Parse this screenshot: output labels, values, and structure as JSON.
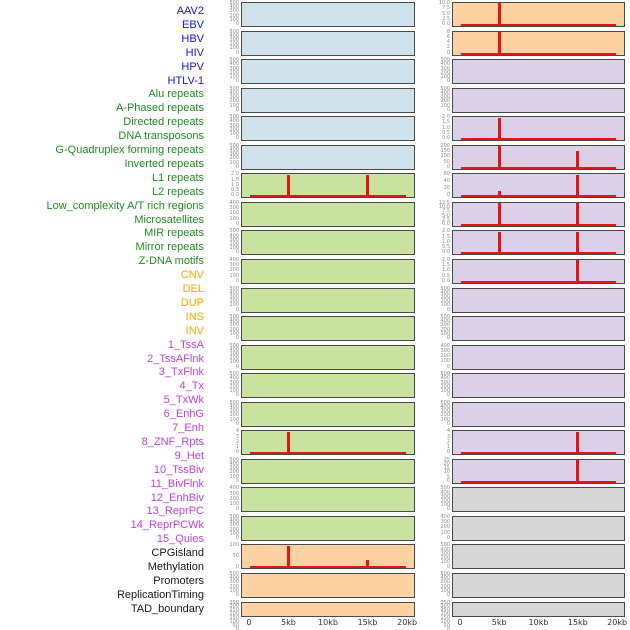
{
  "figure": {
    "x_axis_ticks": [
      "0",
      "5kb",
      "10kb",
      "15kb",
      "20kb"
    ],
    "x_axis_tick_positions_kb": [
      0,
      5,
      10,
      15,
      20
    ],
    "x_domain_kb": [
      0,
      20
    ],
    "x_pad_kb": 1
  },
  "colors": {
    "background": "#ffffff",
    "panel_border": "#4a4a4a",
    "signal_red": "#e81414",
    "ytick_text": "#8c8c8c",
    "xtick_text": "#333333"
  },
  "groups": {
    "virus": {
      "label_color": "#1414e6",
      "bg": "#cfe2ec"
    },
    "repeat": {
      "label_color": "#218a21",
      "bg": "#c9e2a0"
    },
    "sv": {
      "label_color": "#ffa500",
      "bg": "#fcd2a2"
    },
    "chromatin_state": {
      "label_color": "#bf40db",
      "bg": "#dad1e8"
    },
    "other": {
      "label_color": "#1a1a1a",
      "bg": "#d7d7d7"
    }
  },
  "chart_data": {
    "type": "bar",
    "x_unit": "kb",
    "x_ticks": [
      "0",
      "5kb",
      "10kb",
      "15kb",
      "20kb"
    ],
    "peak_positions_kb": [
      5,
      15
    ],
    "columns": [
      {
        "side": "left",
        "tracks": [
          {
            "name": "AAV2",
            "group": "virus",
            "yticks": [
              "500",
              "400",
              "300",
              "200",
              "100",
              "0"
            ],
            "ymax": 525,
            "peaks": [],
            "baseline": false
          },
          {
            "name": "EBV",
            "group": "virus",
            "yticks": [
              "500",
              "400",
              "300",
              "200",
              "100",
              "0"
            ],
            "ymax": 525,
            "peaks": [],
            "baseline": false
          },
          {
            "name": "HBV",
            "group": "virus",
            "yticks": [
              "500",
              "400",
              "300",
              "200",
              "100",
              "0"
            ],
            "ymax": 525,
            "peaks": [],
            "baseline": false
          },
          {
            "name": "HIV",
            "group": "virus",
            "yticks": [
              "500",
              "400",
              "300",
              "200",
              "100",
              "0"
            ],
            "ymax": 525,
            "peaks": [],
            "baseline": false
          },
          {
            "name": "HPV",
            "group": "virus",
            "yticks": [
              "500",
              "400",
              "300",
              "200",
              "100",
              "0"
            ],
            "ymax": 525,
            "peaks": [],
            "baseline": false
          },
          {
            "name": "HTLV-1",
            "group": "virus",
            "yticks": [
              "500",
              "400",
              "300",
              "200",
              "100",
              "0"
            ],
            "ymax": 525,
            "peaks": [],
            "baseline": false
          },
          {
            "name": "Alu repeats",
            "group": "repeat",
            "yticks": [
              "2.0",
              "1.5",
              "1.0",
              "0.5",
              "0.0"
            ],
            "ymax": 2.1,
            "peaks": [
              {
                "x_kb": 5,
                "value": 2.08
              },
              {
                "x_kb": 15,
                "value": 2.08
              }
            ],
            "baseline": true
          },
          {
            "name": "A-Phased repeats",
            "group": "repeat",
            "yticks": [
              "400",
              "300",
              "200",
              "100",
              "0"
            ],
            "ymax": 420,
            "peaks": [],
            "baseline": false
          },
          {
            "name": "Directed repeats",
            "group": "repeat",
            "yticks": [
              "500",
              "400",
              "300",
              "200",
              "100",
              "0"
            ],
            "ymax": 525,
            "peaks": [],
            "baseline": false
          },
          {
            "name": "DNA transposons",
            "group": "repeat",
            "yticks": [
              "400",
              "300",
              "200",
              "100",
              "0"
            ],
            "ymax": 420,
            "peaks": [],
            "baseline": false
          },
          {
            "name": "G-Quadruplex forming repeats",
            "group": "repeat",
            "yticks": [
              "500",
              "400",
              "300",
              "200",
              "100",
              "0"
            ],
            "ymax": 525,
            "peaks": [],
            "baseline": false
          },
          {
            "name": "Inverted repeats",
            "group": "repeat",
            "yticks": [
              "500",
              "400",
              "300",
              "200",
              "100",
              "0"
            ],
            "ymax": 525,
            "peaks": [],
            "baseline": false
          },
          {
            "name": "L1 repeats",
            "group": "repeat",
            "yticks": [
              "500",
              "400",
              "300",
              "200",
              "100",
              "0"
            ],
            "ymax": 525,
            "peaks": [],
            "baseline": false
          },
          {
            "name": "L2 repeats",
            "group": "repeat",
            "yticks": [
              "500",
              "400",
              "300",
              "200",
              "100",
              "0"
            ],
            "ymax": 525,
            "peaks": [],
            "baseline": false
          },
          {
            "name": "Low_complexity A/T rich regions",
            "group": "repeat",
            "yticks": [
              "500",
              "400",
              "300",
              "200",
              "100",
              "0"
            ],
            "ymax": 525,
            "peaks": [],
            "baseline": false
          },
          {
            "name": "Microsatellites",
            "group": "repeat",
            "yticks": [
              "4",
              "3",
              "2",
              "1",
              "0"
            ],
            "ymax": 4.2,
            "peaks": [
              {
                "x_kb": 5,
                "value": 4.1
              }
            ],
            "baseline": true
          },
          {
            "name": "MIR repeats",
            "group": "repeat",
            "yticks": [
              "500",
              "400",
              "300",
              "200",
              "100",
              "0"
            ],
            "ymax": 525,
            "peaks": [],
            "baseline": false
          },
          {
            "name": "Mirror repeats",
            "group": "repeat",
            "yticks": [
              "400",
              "300",
              "200",
              "100",
              "0"
            ],
            "ymax": 420,
            "peaks": [],
            "baseline": false
          },
          {
            "name": "Z-DNA motifs",
            "group": "repeat",
            "yticks": [
              "500",
              "400",
              "300",
              "200",
              "100",
              "0"
            ],
            "ymax": 525,
            "peaks": [],
            "baseline": false
          },
          {
            "name": "CNV",
            "group": "sv",
            "yticks": [
              "100",
              "50",
              "0"
            ],
            "ymax": 150,
            "peaks": [
              {
                "x_kb": 5,
                "value": 148
              },
              {
                "x_kb": 15,
                "value": 55
              }
            ],
            "baseline": true
          },
          {
            "name": "DEL",
            "group": "sv",
            "yticks": [
              "500",
              "400",
              "300",
              "200",
              "100",
              "0"
            ],
            "ymax": 525,
            "peaks": [],
            "baseline": false
          },
          {
            "name": "DUP",
            "group": "sv",
            "yticks": [
              "350",
              "300",
              "250",
              "200",
              "150",
              "100",
              "50",
              "0"
            ],
            "ymax": 368,
            "peaks": [],
            "baseline": false
          }
        ]
      },
      {
        "side": "right",
        "tracks": [
          {
            "name": "INS",
            "group": "sv",
            "yticks": [
              "10.0",
              "7.5",
              "5.0",
              "2.5",
              "0.0"
            ],
            "ymax": 10.5,
            "peaks": [
              {
                "x_kb": 5,
                "value": 10.4
              }
            ],
            "baseline": true
          },
          {
            "name": "INV",
            "group": "sv",
            "yticks": [
              "8",
              "6",
              "4",
              "2",
              "0"
            ],
            "ymax": 8.4,
            "peaks": [
              {
                "x_kb": 5,
                "value": 8.3
              }
            ],
            "baseline": true
          },
          {
            "name": "1_TssA",
            "group": "chromatin_state",
            "yticks": [
              "500",
              "400",
              "300",
              "200",
              "100",
              "0"
            ],
            "ymax": 525,
            "peaks": [],
            "baseline": false
          },
          {
            "name": "2_TssAFlnk",
            "group": "chromatin_state",
            "yticks": [
              "500",
              "400",
              "300",
              "200",
              "100",
              "0"
            ],
            "ymax": 525,
            "peaks": [],
            "baseline": false
          },
          {
            "name": "3_TxFlnk",
            "group": "chromatin_state",
            "yticks": [
              "2.0",
              "1.5",
              "1.0",
              "0.5",
              "0.0"
            ],
            "ymax": 2.1,
            "peaks": [
              {
                "x_kb": 5,
                "value": 2.07
              }
            ],
            "baseline": true
          },
          {
            "name": "4_Tx",
            "group": "chromatin_state",
            "yticks": [
              "200",
              "150",
              "100",
              "50",
              "0"
            ],
            "ymax": 230,
            "peaks": [
              {
                "x_kb": 5,
                "value": 228
              },
              {
                "x_kb": 15,
                "value": 178
              }
            ],
            "baseline": true
          },
          {
            "name": "5_TxWk",
            "group": "chromatin_state",
            "yticks": [
              "60",
              "40",
              "20",
              "0"
            ],
            "ymax": 66,
            "peaks": [
              {
                "x_kb": 5,
                "value": 18
              },
              {
                "x_kb": 15,
                "value": 65
              }
            ],
            "baseline": true
          },
          {
            "name": "6_EnhG",
            "group": "chromatin_state",
            "yticks": [
              "12.5",
              "10.0",
              "7.5",
              "5.0",
              "2.5",
              "0.0"
            ],
            "ymax": 13.1,
            "peaks": [
              {
                "x_kb": 5,
                "value": 12.9
              },
              {
                "x_kb": 15,
                "value": 12.9
              }
            ],
            "baseline": true
          },
          {
            "name": "7_Enh",
            "group": "chromatin_state",
            "yticks": [
              "2.0",
              "1.5",
              "1.0",
              "0.5",
              "0.0"
            ],
            "ymax": 2.1,
            "peaks": [
              {
                "x_kb": 5,
                "value": 2.07
              },
              {
                "x_kb": 15,
                "value": 2.07
              }
            ],
            "baseline": true
          },
          {
            "name": "8_ZNF_Rpts",
            "group": "chromatin_state",
            "yticks": [
              "2.0",
              "1.5",
              "1.0",
              "0.5",
              "0.0"
            ],
            "ymax": 2.1,
            "peaks": [
              {
                "x_kb": 15,
                "value": 2.07
              }
            ],
            "baseline": true
          },
          {
            "name": "9_Het",
            "group": "chromatin_state",
            "yticks": [
              "500",
              "400",
              "300",
              "200",
              "100",
              "0"
            ],
            "ymax": 525,
            "peaks": [],
            "baseline": false
          },
          {
            "name": "10_TssBiv",
            "group": "chromatin_state",
            "yticks": [
              "500",
              "400",
              "300",
              "200",
              "100",
              "0"
            ],
            "ymax": 525,
            "peaks": [],
            "baseline": false
          },
          {
            "name": "11_BivFlnk",
            "group": "chromatin_state",
            "yticks": [
              "400",
              "300",
              "200",
              "100",
              "0"
            ],
            "ymax": 420,
            "peaks": [],
            "baseline": false
          },
          {
            "name": "12_EnhBiv",
            "group": "chromatin_state",
            "yticks": [
              "500",
              "400",
              "300",
              "200",
              "100",
              "0"
            ],
            "ymax": 525,
            "peaks": [],
            "baseline": false
          },
          {
            "name": "13_ReprPC",
            "group": "chromatin_state",
            "yticks": [
              "500",
              "400",
              "300",
              "200",
              "100",
              "0"
            ],
            "ymax": 525,
            "peaks": [],
            "baseline": false
          },
          {
            "name": "14_ReprPCWk",
            "group": "chromatin_state",
            "yticks": [
              "4",
              "3",
              "2",
              "1",
              "0"
            ],
            "ymax": 4.25,
            "peaks": [
              {
                "x_kb": 15,
                "value": 4.1
              }
            ],
            "baseline": true
          },
          {
            "name": "15_Quies",
            "group": "chromatin_state",
            "yticks": [
              "25",
              "20",
              "15",
              "10",
              "5",
              "0"
            ],
            "ymax": 26,
            "peaks": [
              {
                "x_kb": 15,
                "value": 25.6
              }
            ],
            "baseline": true
          },
          {
            "name": "CPGisland",
            "group": "other",
            "yticks": [
              "500",
              "400",
              "300",
              "200",
              "100",
              "0"
            ],
            "ymax": 525,
            "peaks": [],
            "baseline": false
          },
          {
            "name": "Methylation",
            "group": "other",
            "yticks": [
              "400",
              "300",
              "200",
              "100",
              "0"
            ],
            "ymax": 420,
            "peaks": [],
            "baseline": false
          },
          {
            "name": "Promoters",
            "group": "other",
            "yticks": [
              "500",
              "400",
              "300",
              "200",
              "100",
              "0"
            ],
            "ymax": 525,
            "peaks": [],
            "baseline": false
          },
          {
            "name": "ReplicationTiming",
            "group": "other",
            "yticks": [
              "500",
              "400",
              "300",
              "200",
              "100",
              "0"
            ],
            "ymax": 525,
            "peaks": [],
            "baseline": false
          },
          {
            "name": "TAD_boundary",
            "group": "other",
            "yticks": [
              "350",
              "300",
              "250",
              "200",
              "150",
              "100",
              "50",
              "0"
            ],
            "ymax": 368,
            "peaks": [],
            "baseline": false
          }
        ]
      }
    ]
  }
}
